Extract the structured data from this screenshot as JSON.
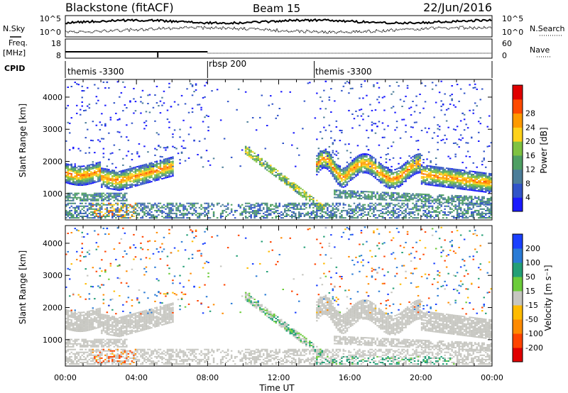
{
  "header": {
    "title": "Blackstone (fitACF)",
    "beam": "Beam 15",
    "date": "22/Jun/2016"
  },
  "summary": {
    "nsky_label": "N.Sky",
    "nsearch_label": "N.Search",
    "nsky_ticks": [
      "10^5",
      "10^0"
    ],
    "nsearch_ticks": [
      "10^5",
      "10^0"
    ],
    "freq_label": "Freq.",
    "freq_unit": "[MHz]",
    "freq_ticks": [
      "18",
      "8"
    ],
    "nave_label": "Nave",
    "nave_ticks": [
      "60",
      "0"
    ],
    "cpid_label": "CPID",
    "cpid_segments": [
      {
        "label": "themis -3300",
        "start_h": 0,
        "end_h": 8
      },
      {
        "label": "rbsp 200",
        "start_h": 8,
        "end_h": 14
      },
      {
        "label": "themis -3300",
        "start_h": 14,
        "end_h": 24
      }
    ]
  },
  "chart_data": [
    {
      "type": "heatmap",
      "name": "power",
      "ylabel": "Slant Range [km]",
      "ylim": [
        180,
        4550
      ],
      "yticks": [
        1000,
        2000,
        3000,
        4000
      ],
      "xlim": [
        0,
        24
      ],
      "colorbar": {
        "label": "Power [dB]",
        "ticks": [
          "4",
          "8",
          "12",
          "16",
          "20",
          "24",
          "28"
        ],
        "colors": [
          "#1a1aff",
          "#3154c8",
          "#4c7e99",
          "#4e9f63",
          "#7fc241",
          "#ffd21a",
          "#ff9a00",
          "#ff4a00",
          "#e00000"
        ]
      }
    },
    {
      "type": "heatmap",
      "name": "velocity",
      "ylabel": "Slant Range [km]",
      "ylim": [
        180,
        4550
      ],
      "yticks": [
        1000,
        2000,
        3000,
        4000
      ],
      "xlim": [
        0,
        24
      ],
      "xticks": [
        "00:00",
        "04:00",
        "08:00",
        "12:00",
        "16:00",
        "20:00",
        "00:00"
      ],
      "xlabel": "Time UT",
      "colorbar": {
        "label": "Velocity [m s⁻¹]",
        "ticks": [
          "200",
          "100",
          "50",
          "15",
          "-15",
          "-50",
          "-100",
          "-200"
        ],
        "colors": [
          "#1a40ff",
          "#2a7bd6",
          "#239f76",
          "#6ccc3a",
          "#c6c6c0",
          "#ffbb00",
          "#ff8a00",
          "#ff4400",
          "#e00000"
        ]
      }
    }
  ]
}
